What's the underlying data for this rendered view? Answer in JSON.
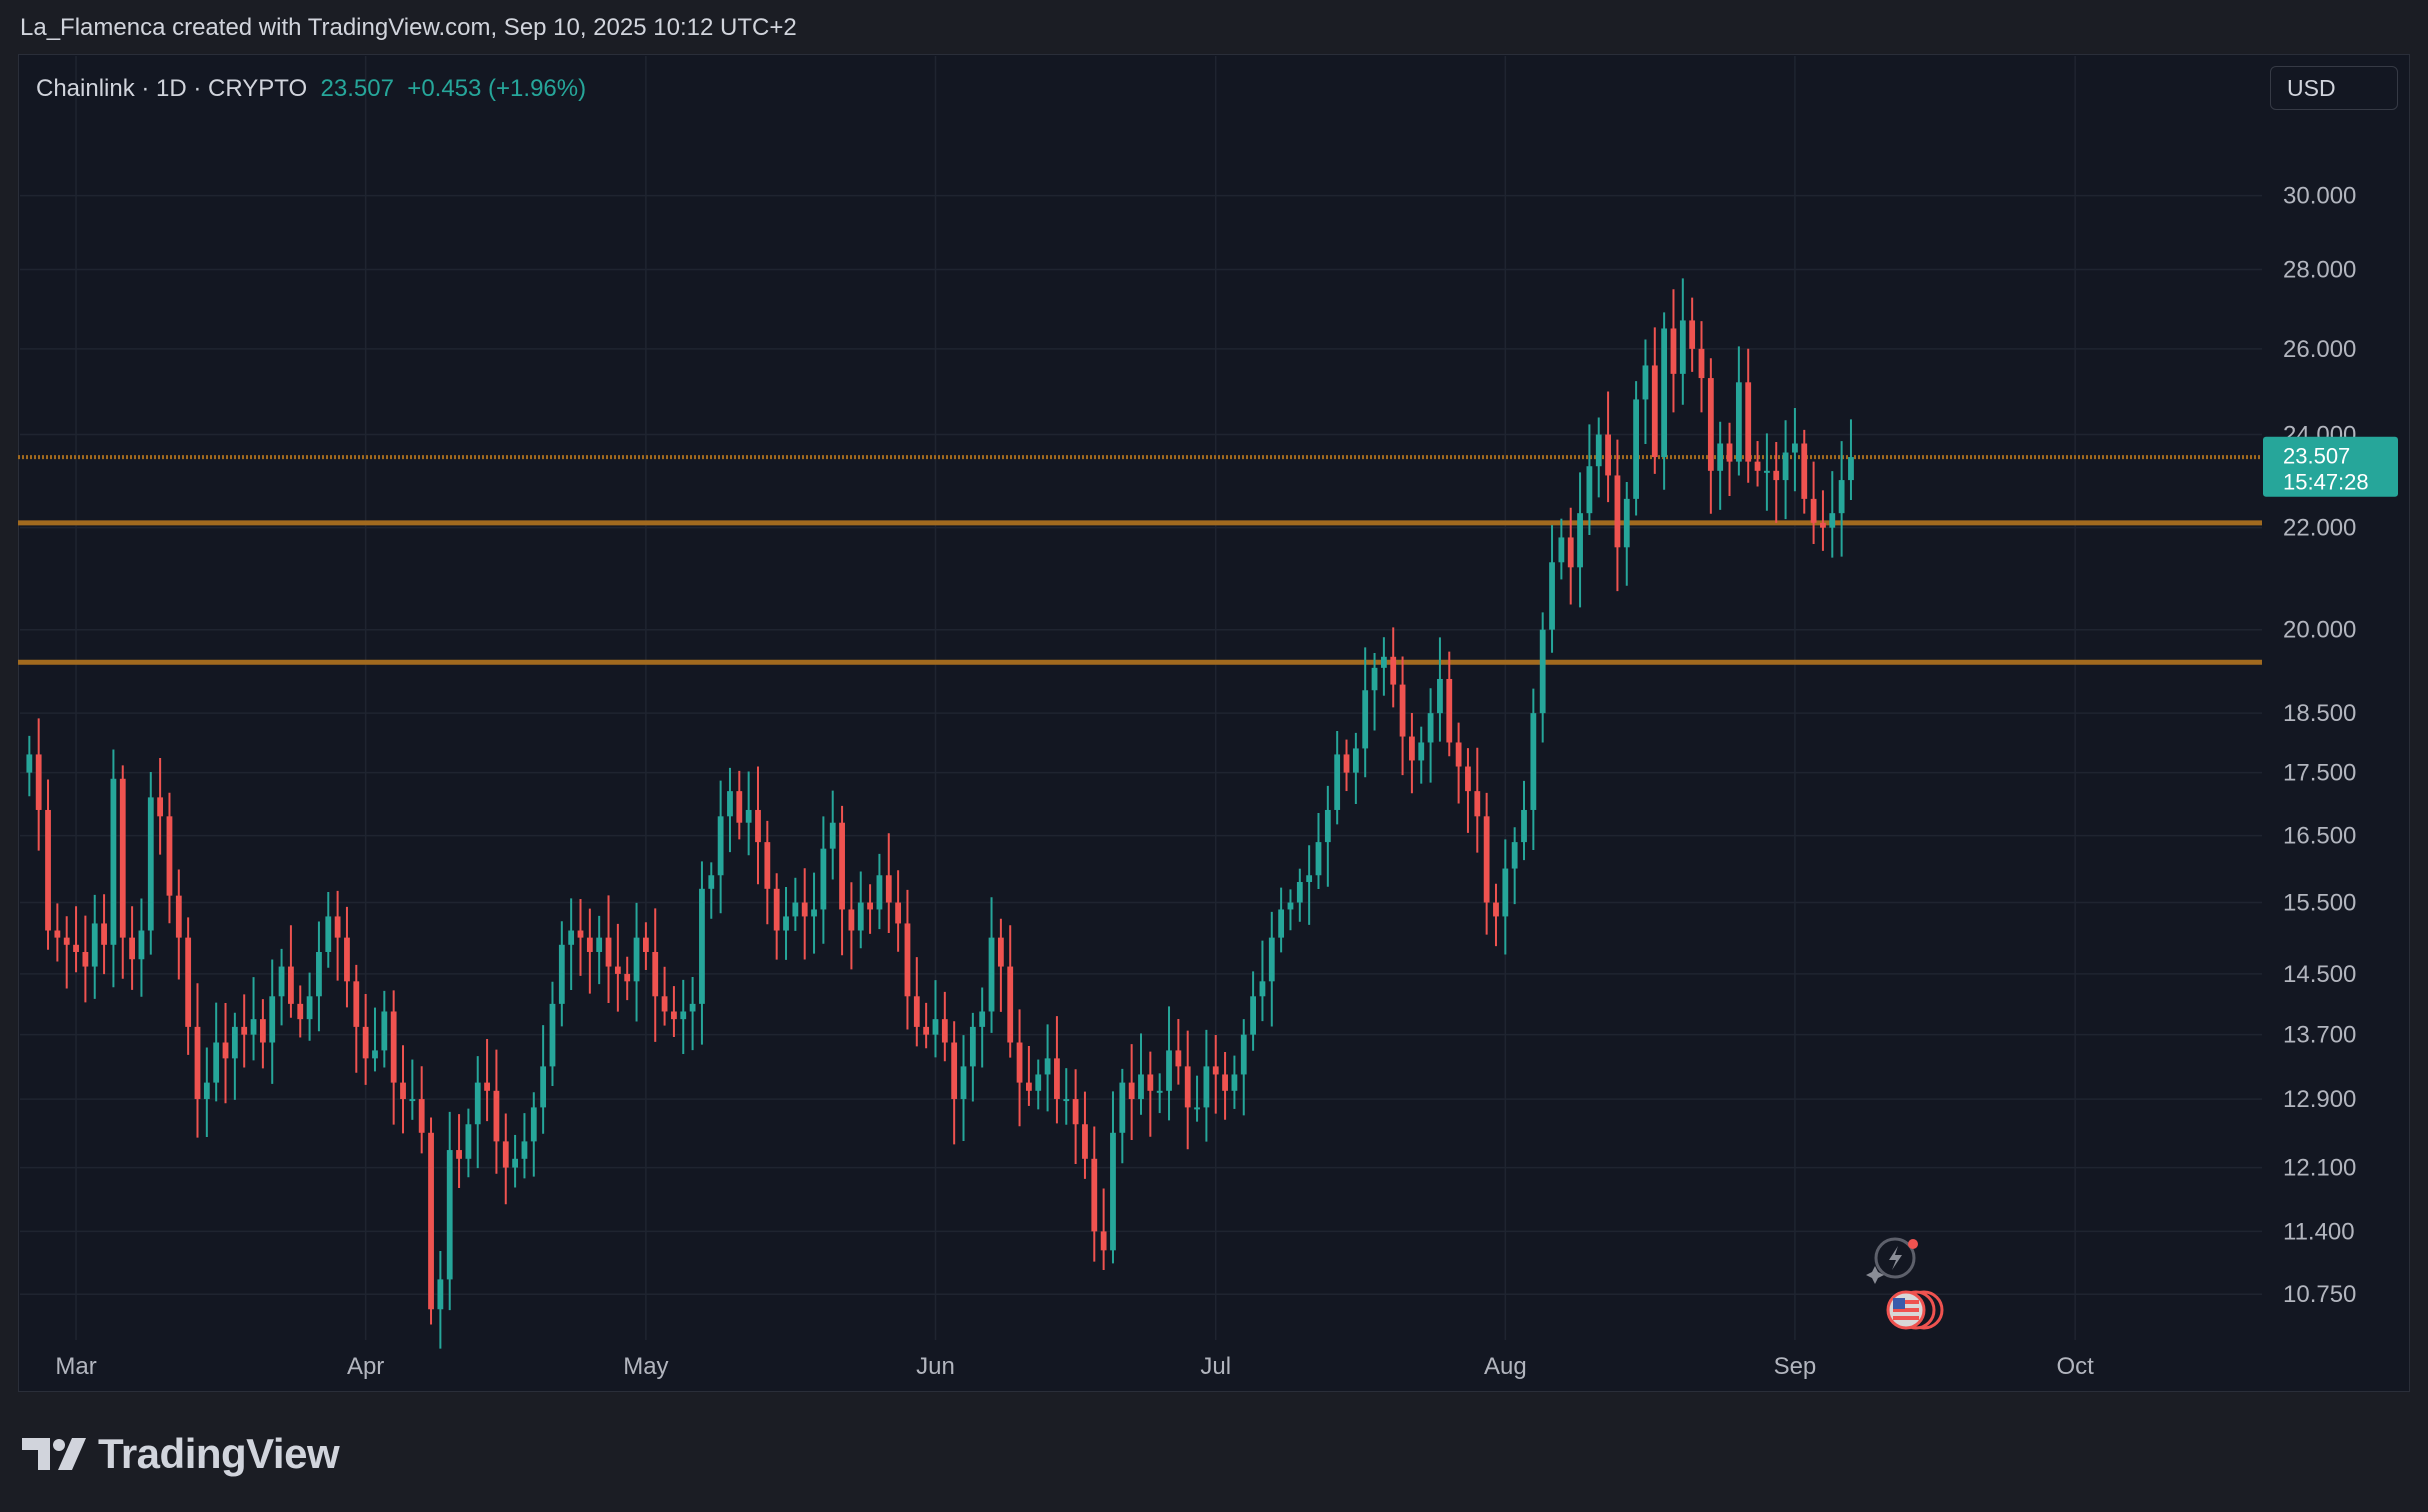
{
  "header": {
    "attribution": "La_Flamenca created with TradingView.com, Sep 10, 2025 10:12 UTC+2"
  },
  "legend": {
    "symbol": "Chainlink · 1D · CRYPTO",
    "last": "23.507",
    "change": "+0.453",
    "change_pct": "(+1.96%)"
  },
  "currency": "USD",
  "price_tag": {
    "price": "23.507",
    "countdown": "15:47:28",
    "color": "#26a69a"
  },
  "brand": {
    "logo_icon": "tradingview-logo-icon",
    "name": "TradingView"
  },
  "event_icons": [
    "lightning-event-icon",
    "us-flag-economic-event-icon"
  ],
  "colors": {
    "up": "#26a69a",
    "down": "#ef5350",
    "level_line": "#a16a1f",
    "background": "#131722",
    "grid": "#1f2430"
  },
  "chart_data": {
    "type": "candlestick",
    "symbol": "Chainlink",
    "interval": "1D",
    "currency": "USD",
    "y_scale": "log",
    "ylim": [
      10.3,
      32.5
    ],
    "xlim": [
      "2025-02-23",
      "2025-10-21"
    ],
    "x_ticks": [
      {
        "label": "Mar",
        "date": "2025-03-01"
      },
      {
        "label": "Apr",
        "date": "2025-04-01"
      },
      {
        "label": "May",
        "date": "2025-05-01"
      },
      {
        "label": "Jun",
        "date": "2025-06-01"
      },
      {
        "label": "Jul",
        "date": "2025-07-01"
      },
      {
        "label": "Aug",
        "date": "2025-08-01"
      },
      {
        "label": "Sep",
        "date": "2025-09-01"
      },
      {
        "label": "Oct",
        "date": "2025-10-01"
      }
    ],
    "y_ticks": [
      "30.000",
      "28.000",
      "26.000",
      "24.000",
      "22.000",
      "20.000",
      "18.500",
      "17.500",
      "16.500",
      "15.500",
      "14.500",
      "13.700",
      "12.900",
      "12.100",
      "11.400",
      "10.750"
    ],
    "horizontal_levels": [
      23.5,
      22.1,
      19.4
    ],
    "last_price": 23.507,
    "start_date": "2025-02-24",
    "closes": [
      17.8,
      16.9,
      15.1,
      15.0,
      14.9,
      14.8,
      14.6,
      15.2,
      14.9,
      17.4,
      15.0,
      14.7,
      15.1,
      17.1,
      16.8,
      15.6,
      15.0,
      13.8,
      12.9,
      13.1,
      13.6,
      13.4,
      13.8,
      13.7,
      13.9,
      13.6,
      14.2,
      14.6,
      14.1,
      13.9,
      14.2,
      14.8,
      15.3,
      15.0,
      14.4,
      13.8,
      13.4,
      13.5,
      14.0,
      13.1,
      12.9,
      12.9,
      12.5,
      10.6,
      10.9,
      12.3,
      12.2,
      12.6,
      13.1,
      13.0,
      12.4,
      12.1,
      12.2,
      12.4,
      12.8,
      13.3,
      14.1,
      14.9,
      15.1,
      15.0,
      14.8,
      15.0,
      14.6,
      14.5,
      14.4,
      15.0,
      14.8,
      14.2,
      14.0,
      13.9,
      14.0,
      14.1,
      15.7,
      15.9,
      16.8,
      17.2,
      16.7,
      16.9,
      16.4,
      15.7,
      15.1,
      15.3,
      15.5,
      15.3,
      15.4,
      16.3,
      16.7,
      15.4,
      15.1,
      15.5,
      15.4,
      15.9,
      15.5,
      15.2,
      14.2,
      13.8,
      13.7,
      13.9,
      13.6,
      12.9,
      13.3,
      13.8,
      14.0,
      15.0,
      14.6,
      13.6,
      13.1,
      13.0,
      13.2,
      13.4,
      12.9,
      12.9,
      12.6,
      12.2,
      11.4,
      11.2,
      12.5,
      13.1,
      12.9,
      13.2,
      13.0,
      13.0,
      13.5,
      13.3,
      12.8,
      12.8,
      13.3,
      13.2,
      13.0,
      13.2,
      13.7,
      14.2,
      14.4,
      15.0,
      15.4,
      15.5,
      15.8,
      15.9,
      16.4,
      16.9,
      17.8,
      17.5,
      17.9,
      18.9,
      19.3,
      19.5,
      19.0,
      18.1,
      17.7,
      18.0,
      18.5,
      19.1,
      18.0,
      17.6,
      17.2,
      16.8,
      15.5,
      15.3,
      16.0,
      16.4,
      16.9,
      18.5,
      20.0,
      21.3,
      21.8,
      21.2,
      22.3,
      23.3,
      24.0,
      23.1,
      21.6,
      22.6,
      24.8,
      25.6,
      23.5,
      26.5,
      25.4,
      26.7,
      26.0,
      25.3,
      23.2,
      23.8,
      23.4,
      25.2,
      23.4,
      23.2,
      23.2,
      23.0,
      23.6,
      23.8,
      22.6,
      22.1,
      22.0,
      22.3,
      23.0,
      23.5
    ]
  }
}
